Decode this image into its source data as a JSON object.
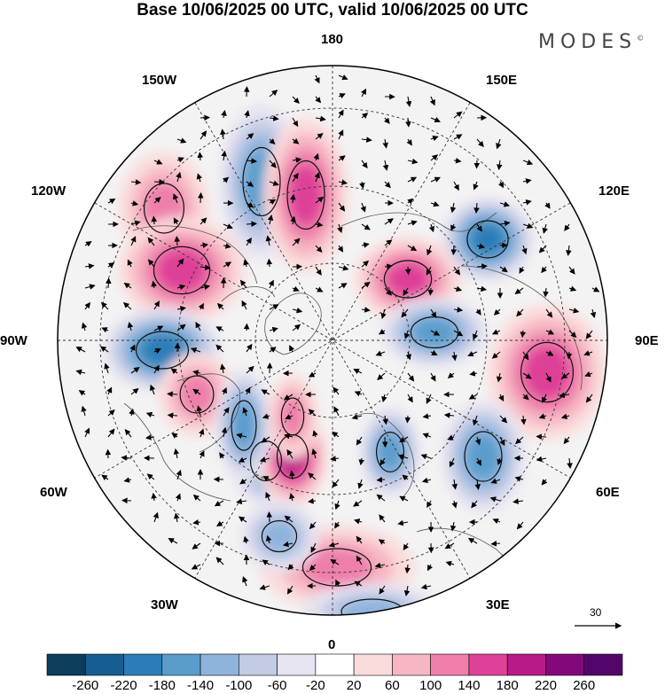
{
  "title": "Base 10/06/2025 00 UTC, valid 10/06/2025 00 UTC",
  "brand": "MODES",
  "brand_mark": "©",
  "meridian_labels": {
    "top": "180",
    "bottom": "0",
    "left": "90W",
    "right": "90E",
    "upper_left_1": "150W",
    "upper_left_2": "120W",
    "upper_right_1": "150E",
    "upper_right_2": "120E",
    "lower_left_1": "60W",
    "lower_left_2": "30W",
    "lower_right_1": "60E",
    "lower_right_2": "30E"
  },
  "vector_scale": {
    "label": "30"
  },
  "colorbar": {
    "ticks": [
      "-260",
      "-220",
      "-180",
      "-140",
      "-100",
      "-60",
      "-20",
      "20",
      "60",
      "100",
      "140",
      "180",
      "220",
      "260"
    ],
    "colors": [
      "#0b3d5c",
      "#165e8f",
      "#2a7db8",
      "#5a9dcc",
      "#8fb4dc",
      "#c3cbe5",
      "#e6e4f1",
      "#ffffff",
      "#fbdcdc",
      "#f6b6c3",
      "#ee7fab",
      "#de4198",
      "#b81b87",
      "#83087a",
      "#52066a"
    ]
  },
  "anomaly_centers": [
    {
      "sign": "positive",
      "level": 2
    },
    {
      "sign": "positive",
      "level": 3
    },
    {
      "sign": "negative",
      "level": 3
    },
    {
      "sign": "negative",
      "level": 4
    },
    {
      "sign": "positive",
      "level": 3
    },
    {
      "sign": "negative",
      "level": 4
    },
    {
      "sign": "negative",
      "level": 3
    },
    {
      "sign": "positive",
      "level": 2
    },
    {
      "sign": "positive",
      "level": 3
    },
    {
      "sign": "negative",
      "level": 3
    },
    {
      "sign": "positive",
      "level": 3
    },
    {
      "sign": "positive",
      "level": 4
    },
    {
      "sign": "negative",
      "level": 3
    },
    {
      "sign": "negative",
      "level": 3
    },
    {
      "sign": "negative",
      "level": 3
    },
    {
      "sign": "positive",
      "level": 2
    },
    {
      "sign": "negative",
      "level": 2
    },
    {
      "sign": "negative",
      "level": 2
    },
    {
      "sign": "positive",
      "level": 2
    }
  ]
}
